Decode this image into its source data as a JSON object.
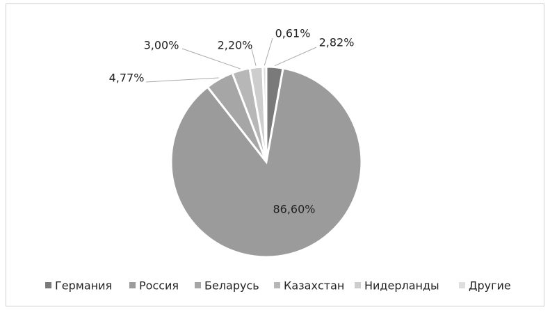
{
  "chart_data": {
    "type": "pie",
    "categories": [
      "Германия",
      "Россия",
      "Беларусь",
      "Казахстан",
      "Нидерланды",
      "Другие"
    ],
    "values": [
      2.82,
      86.6,
      4.77,
      3.0,
      2.2,
      0.61
    ],
    "value_labels": [
      "2,82%",
      "86,60%",
      "4,77%",
      "3,00%",
      "2,20%",
      "0,61%"
    ],
    "colors": [
      "#7a7a7a",
      "#9b9b9b",
      "#a6a6a6",
      "#b7b7b7",
      "#cdcdcd",
      "#dedede"
    ],
    "legend": "bottom"
  }
}
